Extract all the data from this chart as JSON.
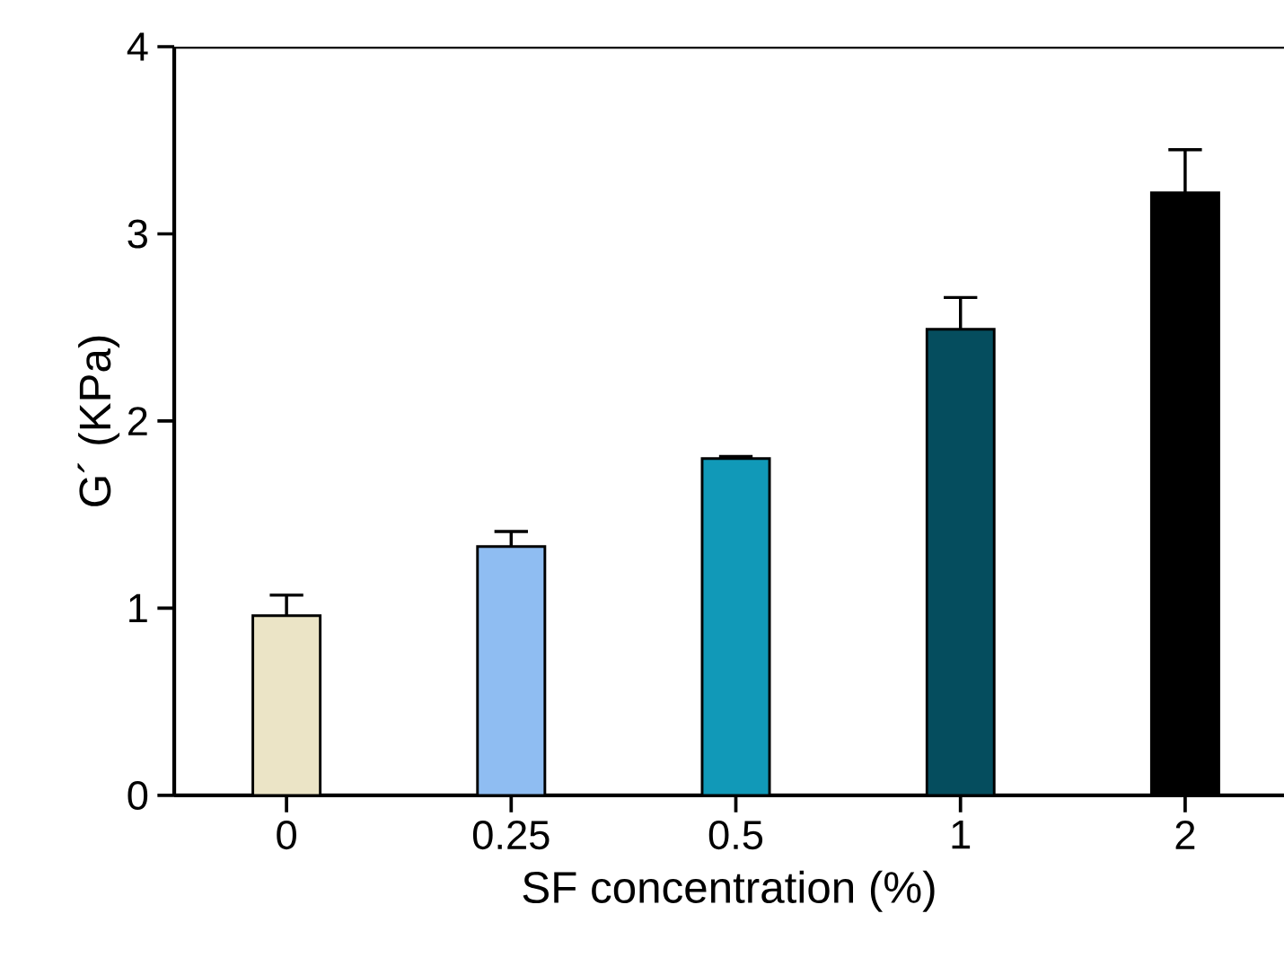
{
  "chart_data": {
    "type": "bar",
    "xlabel": "SF concentration (%)",
    "ylabel": "G´ (KPa)",
    "categories": [
      "0",
      "0.25",
      "0.5",
      "1",
      "2"
    ],
    "values": [
      0.96,
      1.33,
      1.8,
      2.49,
      3.22
    ],
    "errors": [
      [
        0.96,
        1.07
      ],
      [
        1.33,
        1.41
      ],
      [
        1.8,
        1.81
      ],
      [
        2.49,
        2.66
      ],
      [
        3.22,
        3.45
      ]
    ],
    "colors": [
      "#ebe4c6",
      "#8fbdf2",
      "#1199b8",
      "#054d5e",
      "#000000"
    ],
    "ylim": [
      0,
      4
    ],
    "yticks": [
      0,
      1,
      2,
      3,
      4
    ]
  }
}
